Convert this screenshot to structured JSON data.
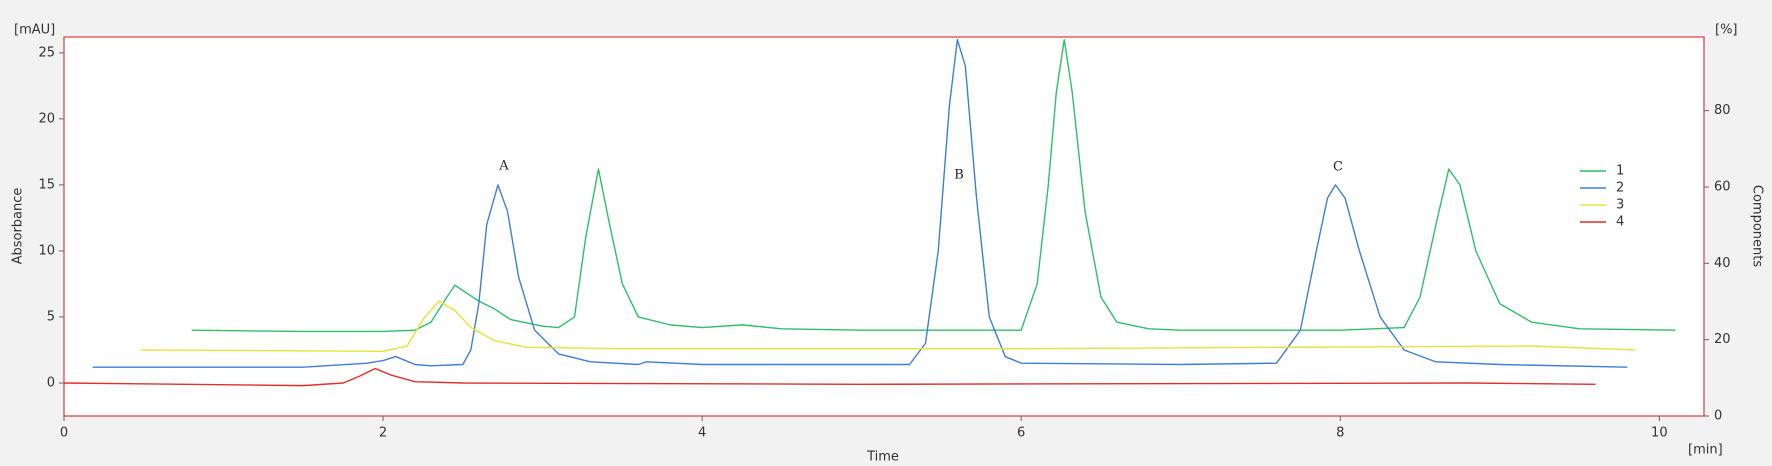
{
  "chart_data": {
    "type": "line",
    "x_label": "Time",
    "x_unit": "[min]",
    "y_label": "Absorbance",
    "y_unit": "[mAU]",
    "y2_label": "Components",
    "y2_unit": "[%]",
    "xlim": [
      0,
      10.28
    ],
    "xticks": [
      0,
      2,
      4,
      6,
      8,
      10
    ],
    "ylim": [
      -2.5,
      26.2
    ],
    "yticks": [
      0,
      5,
      10,
      15,
      20,
      25
    ],
    "y2lim": [
      0,
      99.3
    ],
    "y2ticks": [
      0,
      20,
      40,
      60,
      80
    ],
    "grid": false,
    "legend": "right",
    "annotations": [
      "A",
      "B",
      "C"
    ],
    "series": [
      {
        "name": "1",
        "color": "#2fbf6a",
        "x": [
          0.8,
          1.5,
          2.0,
          2.2,
          2.3,
          2.4,
          2.45,
          2.5,
          2.6,
          2.7,
          2.8,
          3.0,
          3.1,
          3.2,
          3.27,
          3.35,
          3.42,
          3.5,
          3.6,
          3.8,
          4.0,
          4.25,
          4.5,
          5.0,
          5.5,
          6.0,
          6.1,
          6.17,
          6.22,
          6.27,
          6.32,
          6.4,
          6.5,
          6.6,
          6.8,
          7.0,
          7.5,
          8.0,
          8.4,
          8.5,
          8.6,
          8.68,
          8.75,
          8.85,
          9.0,
          9.2,
          9.5,
          10.1
        ],
        "values": [
          4.0,
          3.9,
          3.9,
          4.0,
          4.6,
          6.5,
          7.4,
          7.0,
          6.2,
          5.6,
          4.8,
          4.3,
          4.2,
          5.0,
          11,
          16.2,
          12,
          7.5,
          5.0,
          4.4,
          4.2,
          4.4,
          4.1,
          4.0,
          4.0,
          4.0,
          7.5,
          15,
          22,
          26,
          22,
          13,
          6.5,
          4.6,
          4.1,
          4.0,
          4.0,
          4.0,
          4.2,
          6.5,
          12,
          16.2,
          15,
          10,
          6,
          4.6,
          4.1,
          4.0
        ]
      },
      {
        "name": "2",
        "color": "#3d7fd6",
        "x": [
          0.18,
          1.5,
          1.9,
          2.0,
          2.08,
          2.2,
          2.3,
          2.5,
          2.55,
          2.6,
          2.65,
          2.72,
          2.78,
          2.85,
          2.95,
          3.1,
          3.3,
          3.6,
          3.65,
          4.0,
          5.0,
          5.3,
          5.4,
          5.48,
          5.55,
          5.6,
          5.65,
          5.72,
          5.8,
          5.9,
          6.0,
          7.0,
          7.6,
          7.75,
          7.85,
          7.92,
          7.97,
          8.03,
          8.12,
          8.25,
          8.4,
          8.6,
          9.0,
          9.8
        ],
        "values": [
          1.2,
          1.2,
          1.5,
          1.7,
          2.0,
          1.4,
          1.3,
          1.4,
          2.5,
          6,
          12,
          15,
          13,
          8,
          4,
          2.2,
          1.6,
          1.4,
          1.6,
          1.4,
          1.4,
          1.4,
          3,
          10,
          21,
          26,
          24,
          14,
          5,
          2.0,
          1.5,
          1.4,
          1.5,
          4,
          10,
          14,
          15,
          14,
          10,
          5,
          2.5,
          1.6,
          1.4,
          1.2
        ]
      },
      {
        "name": "3",
        "color": "#e6e23c",
        "x": [
          0.48,
          2.0,
          2.15,
          2.25,
          2.35,
          2.45,
          2.55,
          2.7,
          2.9,
          3.5,
          6.0,
          9.2,
          9.85
        ],
        "values": [
          2.5,
          2.4,
          2.8,
          4.8,
          6.2,
          5.5,
          4.2,
          3.2,
          2.7,
          2.6,
          2.6,
          2.8,
          2.5
        ]
      },
      {
        "name": "4",
        "color": "#e0302c",
        "x": [
          0,
          1.5,
          1.75,
          1.85,
          1.95,
          2.05,
          2.2,
          2.5,
          5.0,
          8.8,
          9.6
        ],
        "values": [
          0,
          -0.2,
          0,
          0.5,
          1.1,
          0.6,
          0.1,
          0,
          -0.1,
          0,
          -0.1
        ]
      }
    ]
  }
}
